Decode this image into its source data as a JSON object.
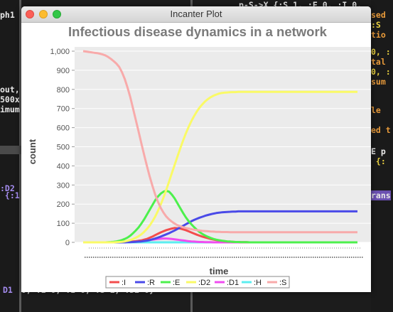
{
  "window": {
    "title": "Incanter Plot"
  },
  "background": {
    "left": [
      {
        "text": "ph1",
        "color": "c-white",
        "y": 14
      },
      {
        "text": "out,",
        "color": "c-white",
        "y": 119
      },
      {
        "text": "500x",
        "color": "c-white",
        "y": 133
      },
      {
        "text": "imum",
        "color": "c-white",
        "y": 147
      },
      {
        "text": ":D2",
        "color": "c-purple",
        "y": 258
      },
      {
        "text": " {:1",
        "color": "c-purple",
        "y": 268
      },
      {
        "text": "D1",
        "color": "c-purple",
        "y": 401
      }
    ],
    "right": [
      {
        "text": "p-S->X {:S 1, :E 0, :I 0,",
        "color": "c-white",
        "y": 0
      },
      {
        "text": "sed",
        "color": "c-orange",
        "y": 14
      },
      {
        "text": ":S",
        "color": "c-yellow",
        "y": 28
      },
      {
        "text": "tio",
        "color": "c-orange",
        "y": 42
      },
      {
        "text": "0, :",
        "color": "c-yellow",
        "y": 66
      },
      {
        "text": "tal",
        "color": "c-orange",
        "y": 80
      },
      {
        "text": "0, :",
        "color": "c-yellow",
        "y": 94
      },
      {
        "text": "sum",
        "color": "c-orange",
        "y": 108
      },
      {
        "text": "le",
        "color": "c-orange",
        "y": 148
      },
      {
        "text": "ed t",
        "color": "c-orange",
        "y": 176
      },
      {
        "text": "E p",
        "color": "c-white",
        "y": 206
      },
      {
        "text": " {:",
        "color": "c-yellow",
        "y": 220
      },
      {
        "text": "rans",
        "color": "c-hl",
        "y": 268
      }
    ],
    "bottom": {
      "text": "0, :E 0, :I 0, :S 1, :D2 0}",
      "color": "c-white"
    }
  },
  "chart_data": {
    "type": "line",
    "title": "Infectious disease dynamics in a network",
    "xlabel": "time",
    "ylabel": "count",
    "ylim": [
      0,
      1000
    ],
    "yticks": [
      "0",
      "100",
      "200",
      "300",
      "400",
      "500",
      "600",
      "700",
      "800",
      "900",
      "1,000"
    ],
    "x_count": 100,
    "grid": true,
    "legend": "bottom",
    "series": [
      {
        "name": ":I",
        "color": "#f34c4c",
        "values": [
          0,
          0,
          0,
          0,
          0,
          0,
          0,
          0,
          0,
          0,
          0,
          0,
          0,
          1,
          1,
          2,
          2,
          3,
          5,
          6,
          8,
          10,
          14,
          18,
          24,
          30,
          38,
          45,
          52,
          58,
          64,
          68,
          72,
          75,
          74,
          72,
          68,
          64,
          58,
          52,
          46,
          40,
          35,
          30,
          26,
          22,
          18,
          15,
          12,
          10,
          8,
          6,
          5,
          4,
          3,
          2,
          2,
          1,
          1,
          1,
          0,
          0,
          0,
          0,
          0,
          0,
          0,
          0,
          0,
          0,
          0,
          0,
          0,
          0,
          0,
          0,
          0,
          0,
          0,
          0,
          0,
          0,
          0,
          0,
          0,
          0,
          0,
          0,
          0,
          0,
          0,
          0,
          0,
          0,
          0,
          0,
          0,
          0,
          0,
          0
        ]
      },
      {
        "name": ":R",
        "color": "#4a4ae8",
        "values": [
          0,
          0,
          0,
          0,
          0,
          0,
          0,
          0,
          0,
          0,
          0,
          0,
          0,
          0,
          0,
          0,
          1,
          1,
          2,
          3,
          4,
          5,
          7,
          9,
          12,
          16,
          20,
          25,
          30,
          36,
          42,
          48,
          55,
          62,
          70,
          78,
          86,
          94,
          102,
          110,
          117,
          123,
          129,
          134,
          139,
          143,
          147,
          150,
          153,
          155,
          157,
          158,
          159,
          160,
          161,
          161,
          162,
          162,
          162,
          162,
          162,
          162,
          162,
          162,
          162,
          162,
          162,
          162,
          162,
          162,
          162,
          162,
          162,
          162,
          162,
          162,
          162,
          162,
          162,
          162,
          162,
          162,
          162,
          162,
          162,
          162,
          162,
          162,
          162,
          162,
          162,
          162,
          162,
          162,
          162,
          162,
          162,
          162,
          162,
          162
        ]
      },
      {
        "name": ":E",
        "color": "#4cf04c",
        "values": [
          0,
          0,
          0,
          0,
          0,
          0,
          0,
          0,
          0,
          1,
          2,
          3,
          5,
          8,
          12,
          18,
          25,
          35,
          48,
          62,
          78,
          98,
          120,
          145,
          170,
          195,
          220,
          240,
          255,
          265,
          270,
          265,
          250,
          230,
          205,
          180,
          155,
          132,
          112,
          95,
          80,
          66,
          54,
          44,
          36,
          29,
          23,
          18,
          14,
          11,
          9,
          7,
          5,
          4,
          3,
          2,
          2,
          1,
          1,
          1,
          0,
          0,
          0,
          0,
          0,
          0,
          0,
          0,
          0,
          0,
          0,
          0,
          0,
          0,
          0,
          0,
          0,
          0,
          0,
          0,
          0,
          0,
          0,
          0,
          0,
          0,
          0,
          0,
          0,
          0,
          0,
          0,
          0,
          0,
          0,
          0,
          0,
          0,
          0,
          0
        ]
      },
      {
        "name": ":D2",
        "color": "#fafa66",
        "values": [
          0,
          0,
          0,
          0,
          0,
          0,
          0,
          0,
          0,
          0,
          0,
          0,
          1,
          2,
          3,
          5,
          8,
          12,
          17,
          24,
          32,
          42,
          55,
          70,
          88,
          110,
          135,
          165,
          198,
          235,
          275,
          318,
          362,
          405,
          448,
          490,
          530,
          568,
          602,
          633,
          660,
          684,
          705,
          722,
          737,
          749,
          759,
          767,
          773,
          778,
          781,
          783,
          784,
          785,
          786,
          786,
          787,
          787,
          787,
          787,
          787,
          787,
          787,
          787,
          787,
          787,
          787,
          787,
          787,
          787,
          787,
          787,
          787,
          787,
          787,
          787,
          787,
          787,
          787,
          787,
          787,
          787,
          787,
          787,
          787,
          787,
          787,
          787,
          787,
          787,
          787,
          787,
          787,
          787,
          787,
          787,
          787,
          787,
          787,
          787
        ]
      },
      {
        "name": ":D1",
        "color": "#f04cf0",
        "values": [
          0,
          0,
          0,
          0,
          0,
          0,
          0,
          0,
          0,
          0,
          0,
          0,
          0,
          0,
          1,
          1,
          2,
          2,
          3,
          4,
          5,
          6,
          8,
          10,
          12,
          14,
          16,
          18,
          19,
          20,
          20,
          19,
          18,
          16,
          14,
          12,
          10,
          8,
          6,
          5,
          4,
          3,
          2,
          2,
          1,
          1,
          1,
          0,
          0,
          0,
          0,
          0,
          0,
          0,
          0,
          0,
          0,
          0,
          0,
          0,
          0,
          0,
          0,
          0,
          0,
          0,
          0,
          0,
          0,
          0,
          0,
          0,
          0,
          0,
          0,
          0,
          0,
          0,
          0,
          0,
          0,
          0,
          0,
          0,
          0,
          0,
          0,
          0,
          0,
          0,
          0,
          0,
          0,
          0,
          0,
          0,
          0,
          0,
          0,
          0
        ]
      },
      {
        "name": ":H",
        "color": "#5ceef0",
        "values": [
          0,
          0,
          0,
          0,
          0,
          0,
          0,
          0,
          0,
          0,
          0,
          0,
          0,
          0,
          0,
          0,
          0,
          0,
          0,
          0,
          0,
          0,
          0,
          0,
          0,
          0,
          0,
          0,
          0,
          0,
          0,
          0,
          0,
          0,
          0,
          0,
          0,
          0,
          0,
          0,
          0,
          0,
          0,
          0,
          0,
          0,
          0,
          0,
          0,
          0,
          0,
          0,
          0,
          0,
          0,
          0,
          0,
          0,
          0,
          0,
          0,
          0,
          0,
          0,
          0,
          0,
          0,
          0,
          0,
          0,
          0,
          0,
          0,
          0,
          0,
          0,
          0,
          0,
          0,
          0,
          0,
          0,
          0,
          0,
          0,
          0,
          0,
          0,
          0,
          0,
          0,
          0,
          0,
          0,
          0,
          0,
          0,
          0,
          0,
          0
        ]
      },
      {
        "name": ":S",
        "color": "#f8aaaa",
        "values": [
          1000,
          998,
          996,
          994,
          992,
          990,
          987,
          983,
          978,
          970,
          960,
          948,
          935,
          918,
          890,
          855,
          810,
          760,
          700,
          640,
          580,
          518,
          458,
          400,
          345,
          295,
          250,
          212,
          180,
          155,
          135,
          120,
          108,
          98,
          90,
          84,
          79,
          75,
          72,
          69,
          66,
          64,
          62,
          60,
          59,
          58,
          57,
          56,
          55,
          55,
          54,
          54,
          54,
          53,
          53,
          53,
          53,
          53,
          53,
          53,
          53,
          53,
          53,
          53,
          53,
          53,
          53,
          53,
          53,
          53,
          53,
          53,
          53,
          53,
          53,
          53,
          53,
          53,
          53,
          53,
          53,
          53,
          53,
          53,
          53,
          53,
          53,
          53,
          53,
          53,
          53,
          53,
          53,
          53,
          53,
          53,
          53,
          53,
          53,
          53
        ]
      }
    ]
  }
}
